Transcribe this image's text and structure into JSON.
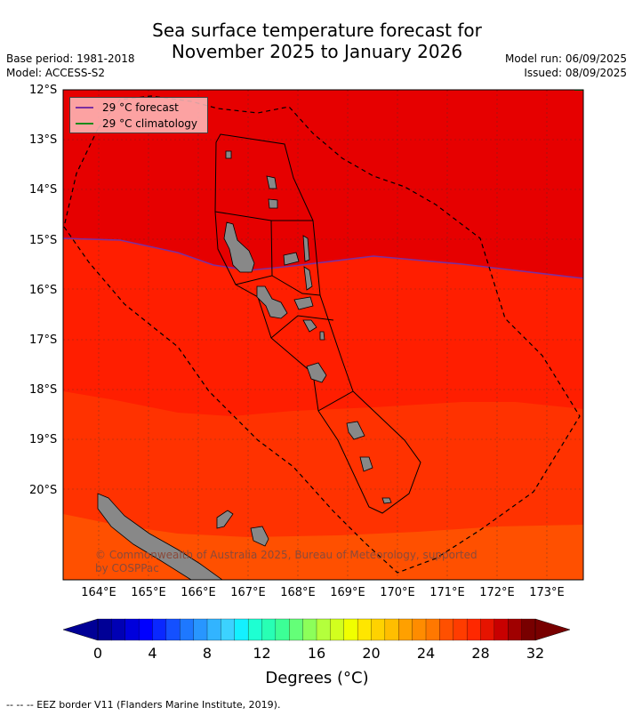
{
  "title": {
    "line1": "Sea surface temperature forecast for",
    "line2": "November 2025 to January 2026"
  },
  "meta_left": {
    "base_period": "Base period: 1981-2018",
    "model": "Model: ACCESS-S2"
  },
  "meta_right": {
    "model_run": "Model run: 06/09/2025",
    "issued": "Issued: 08/09/2025"
  },
  "legend": {
    "forecast_label": "29 °C  forecast",
    "forecast_color": "#7b2fa0",
    "climatology_label": "29 °C  climatology",
    "climatology_color": "#1a8a1a"
  },
  "copyright": {
    "line1": "© Commonwealth of Australia 2025, Bureau of Meteorology, supported",
    "line2": "by COSPPac"
  },
  "lat_labels": [
    "12°S",
    "13°S",
    "14°S",
    "15°S",
    "16°S",
    "17°S",
    "18°S",
    "19°S",
    "20°S"
  ],
  "lon_labels": [
    "164°E",
    "165°E",
    "166°E",
    "167°E",
    "168°E",
    "169°E",
    "170°E",
    "171°E",
    "172°E",
    "173°E"
  ],
  "colorbar": {
    "tick_labels": [
      "0",
      "4",
      "8",
      "12",
      "16",
      "20",
      "24",
      "28",
      "32"
    ],
    "title": "Degrees (°C)",
    "colors": [
      "#000096",
      "#0000b4",
      "#0000dc",
      "#0000ff",
      "#0a28ff",
      "#1450ff",
      "#1e78ff",
      "#2896ff",
      "#32b4ff",
      "#3cd2ff",
      "#14f0ff",
      "#1effd2",
      "#28ffb4",
      "#3cff96",
      "#64ff78",
      "#8cff5a",
      "#b4ff3c",
      "#d2ff1e",
      "#f0ff00",
      "#ffe600",
      "#ffd200",
      "#ffbe00",
      "#ffa000",
      "#ff8c00",
      "#ff7800",
      "#ff5000",
      "#ff3c00",
      "#ff2800",
      "#e61400",
      "#c80000",
      "#a00000",
      "#780000"
    ]
  },
  "footnote": "--  --  -- EEZ border V11 (Flanders Marine Institute, 2019).",
  "map_colors": {
    "band_30": "#e60000",
    "band_29": "#ff1e00",
    "band_28": "#ff3200",
    "band_27": "#ff5000",
    "land": "#888888"
  }
}
